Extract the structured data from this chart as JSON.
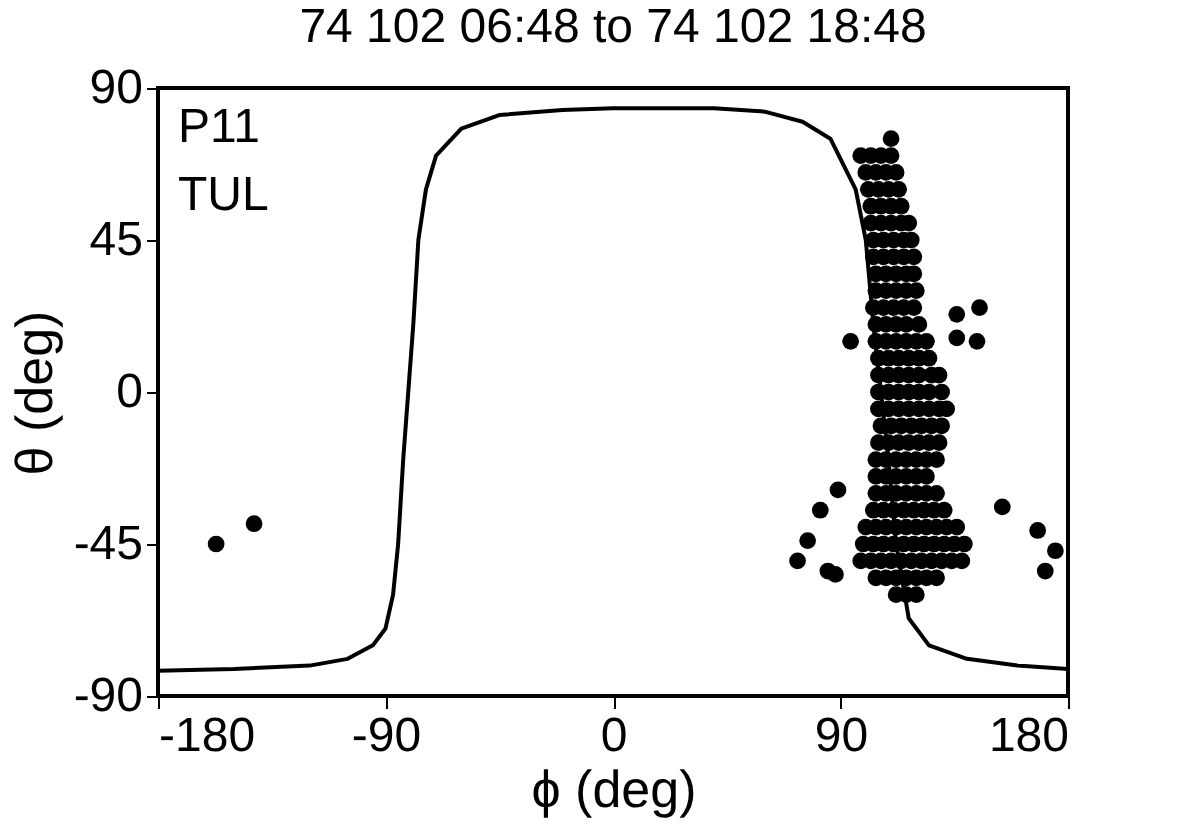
{
  "chart_data": {
    "type": "scatter",
    "title": "74 102 06:48 to 74 102 18:48",
    "xlabel": "ϕ (deg)",
    "ylabel": "θ (deg)",
    "annotations": [
      "P11",
      "TUL"
    ],
    "xlim": [
      -180,
      180
    ],
    "xticks": [
      -180,
      -90,
      0,
      90,
      180
    ],
    "ylim": [
      -90,
      90
    ],
    "yticks": [
      -90,
      -45,
      0,
      45,
      90
    ],
    "series": [
      {
        "type": "line",
        "color": "#000000",
        "x": [
          -180,
          -150,
          -120,
          -105,
          -95,
          -90,
          -87,
          -85,
          -83,
          -81,
          -79,
          -77,
          -74,
          -70,
          -60,
          -45,
          -20,
          0,
          40,
          60,
          75,
          86,
          96,
          100,
          103,
          106,
          109,
          112,
          117,
          125,
          140,
          160,
          180
        ],
        "values": [
          -82.5,
          -82,
          -81,
          -79,
          -75,
          -70,
          -60,
          -45,
          -20,
          0,
          20,
          45,
          60,
          70,
          78,
          82,
          83.5,
          84,
          84,
          83,
          80,
          75,
          60,
          45,
          20,
          0,
          -20,
          -45,
          -67,
          -75,
          -79,
          -81,
          -82
        ]
      },
      {
        "marker": "circle",
        "color": "#000000",
        "x": [
          -157,
          -142,
          110,
          145,
          136,
          136,
          144,
          94,
          168,
          175,
          171,
          73,
          77,
          82,
          89,
          85,
          88,
          154,
          98,
          102,
          106,
          110,
          100,
          104,
          108,
          112,
          101,
          105,
          109,
          113,
          102,
          106,
          110,
          114,
          102,
          106,
          110,
          114,
          117,
          103,
          107,
          111,
          115,
          118,
          103,
          107,
          111,
          115,
          119,
          104,
          108,
          112,
          116,
          119,
          104,
          108,
          112,
          116,
          120,
          103,
          107,
          111,
          115,
          119,
          104,
          108,
          112,
          116,
          121,
          104,
          108,
          112,
          116,
          120,
          124,
          105,
          109,
          113,
          117,
          121,
          125,
          105,
          109,
          113,
          117,
          121,
          126,
          129,
          105,
          109,
          113,
          117,
          121,
          125,
          130,
          105,
          109,
          113,
          117,
          121,
          125,
          129,
          132,
          106,
          110,
          114,
          118,
          122,
          126,
          130,
          105,
          109,
          113,
          117,
          121,
          125,
          129,
          104,
          108,
          112,
          116,
          120,
          124,
          128,
          104,
          108,
          112,
          116,
          120,
          124,
          104,
          108,
          112,
          116,
          120,
          124,
          128,
          103,
          107,
          111,
          115,
          119,
          123,
          127,
          131,
          100,
          104,
          108,
          112,
          116,
          120,
          124,
          128,
          132,
          136,
          99,
          103,
          107,
          111,
          115,
          119,
          123,
          127,
          131,
          135,
          139,
          98,
          102,
          106,
          110,
          114,
          118,
          122,
          126,
          130,
          134,
          138,
          104,
          108,
          112,
          116,
          120,
          124,
          128,
          112,
          116,
          120
        ],
        "values": [
          -45,
          -39,
          75,
          25,
          23,
          16,
          15,
          15,
          -41,
          -47,
          -53,
          -50,
          -44,
          -35,
          -29,
          -53,
          -54,
          -34,
          70,
          70,
          70,
          70,
          65,
          65,
          65,
          65,
          60,
          60,
          60,
          60,
          55,
          55,
          55,
          55,
          50,
          50,
          50,
          50,
          50,
          45,
          45,
          45,
          45,
          45,
          40,
          40,
          40,
          40,
          40,
          35,
          35,
          35,
          35,
          35,
          30,
          30,
          30,
          30,
          30,
          25,
          25,
          25,
          25,
          25,
          20,
          20,
          20,
          20,
          20,
          15,
          15,
          15,
          15,
          15,
          15,
          10,
          10,
          10,
          10,
          10,
          10,
          5,
          5,
          5,
          5,
          5,
          5,
          5,
          0,
          0,
          0,
          0,
          0,
          0,
          0,
          -5,
          -5,
          -5,
          -5,
          -5,
          -5,
          -5,
          -5,
          -10,
          -10,
          -10,
          -10,
          -10,
          -10,
          -10,
          -15,
          -15,
          -15,
          -15,
          -15,
          -15,
          -15,
          -20,
          -20,
          -20,
          -20,
          -20,
          -20,
          -20,
          -25,
          -25,
          -25,
          -25,
          -25,
          -25,
          -30,
          -30,
          -30,
          -30,
          -30,
          -30,
          -30,
          -35,
          -35,
          -35,
          -35,
          -35,
          -35,
          -35,
          -35,
          -40,
          -40,
          -40,
          -40,
          -40,
          -40,
          -40,
          -40,
          -40,
          -40,
          -45,
          -45,
          -45,
          -45,
          -45,
          -45,
          -45,
          -45,
          -45,
          -45,
          -45,
          -50,
          -50,
          -50,
          -50,
          -50,
          -50,
          -50,
          -50,
          -50,
          -50,
          -50,
          -55,
          -55,
          -55,
          -55,
          -55,
          -55,
          -55,
          -60,
          -60,
          -60
        ]
      }
    ]
  }
}
